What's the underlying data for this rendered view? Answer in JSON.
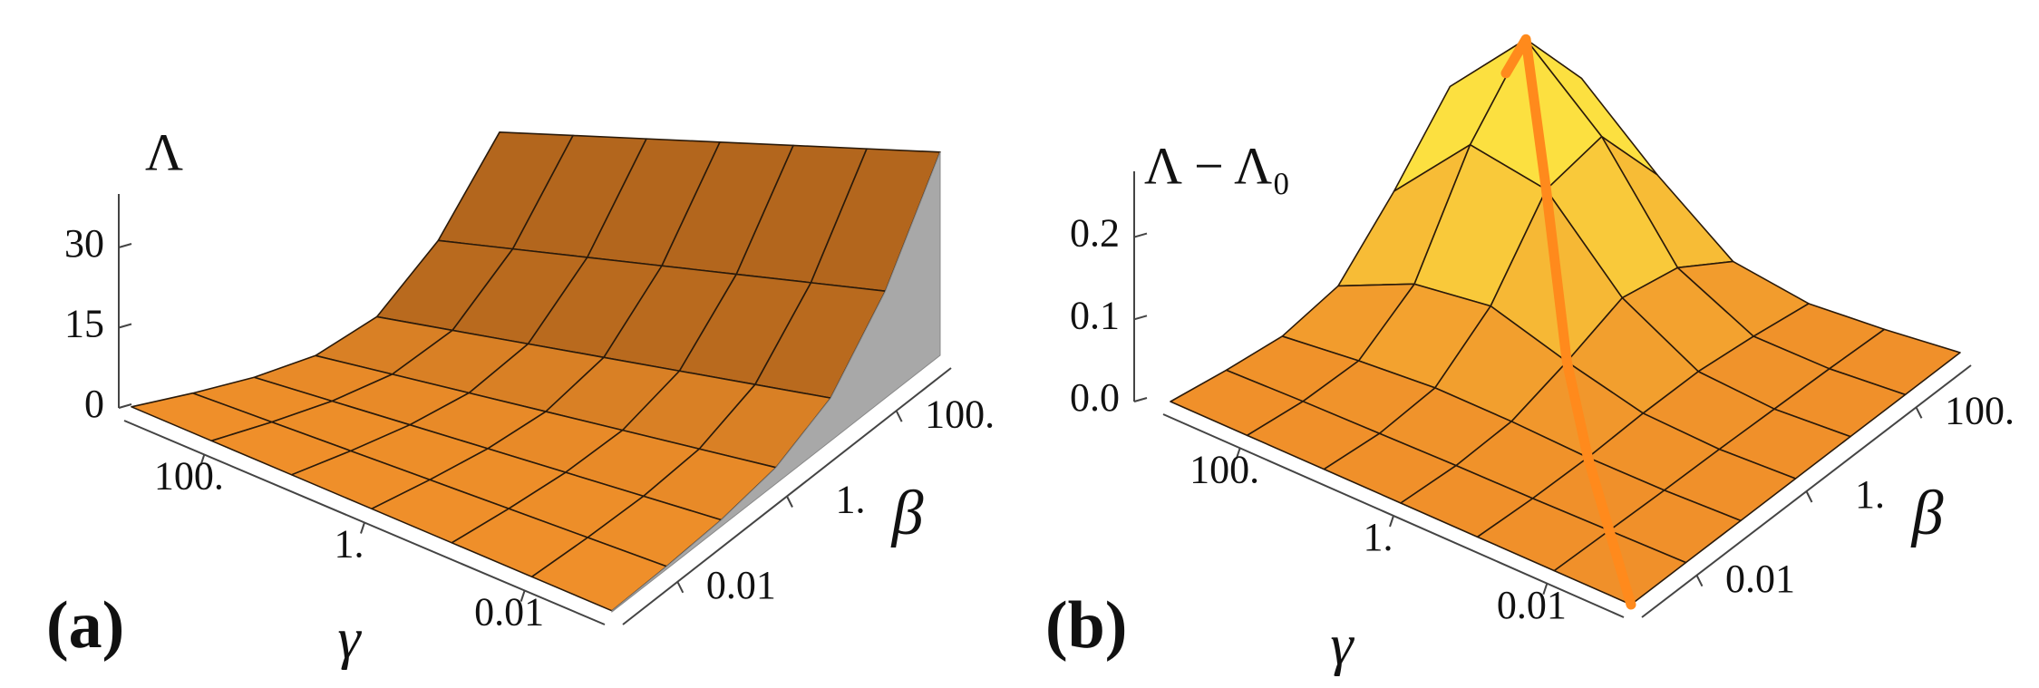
{
  "chart_data": [
    {
      "type": "surface",
      "panel_label": "(a)",
      "z_label": "Λ",
      "x_label": "γ",
      "y_label": "β",
      "x": [
        0.001,
        0.01,
        0.1,
        1,
        10,
        100,
        1000
      ],
      "y": [
        0.001,
        0.01,
        0.1,
        1,
        10,
        100,
        1000
      ],
      "z": [
        [
          0.2,
          0.5,
          1.2,
          3,
          8,
          20,
          38
        ],
        [
          0.2,
          0.5,
          1.2,
          3,
          8,
          20,
          38
        ],
        [
          0.2,
          0.5,
          1.2,
          3,
          8,
          20,
          38
        ],
        [
          0.2,
          0.5,
          1.2,
          3,
          8,
          20,
          38
        ],
        [
          0.2,
          0.5,
          1.2,
          3,
          8,
          20,
          38
        ],
        [
          0.2,
          0.5,
          1.2,
          3,
          8,
          20,
          38
        ],
        [
          0.2,
          0.5,
          1.2,
          3,
          8,
          20,
          38
        ]
      ],
      "xlim": [
        0.001,
        1000
      ],
      "ylim": [
        0.001,
        1000
      ],
      "zlim": [
        0,
        40
      ],
      "log_x": true,
      "log_y": true,
      "xticks": [
        {
          "value": 100,
          "label": "100."
        },
        {
          "value": 1,
          "label": "1."
        },
        0.01
      ],
      "yticks": [
        0.01,
        {
          "value": 1,
          "label": "1."
        },
        {
          "value": 100,
          "label": "100."
        }
      ],
      "zticks": [
        0,
        15,
        30
      ],
      "color": "#f0902a",
      "shadow_wall": true
    },
    {
      "type": "surface",
      "panel_label": "(b)",
      "z_label": "Λ − Λ₀",
      "x_label": "γ",
      "y_label": "β",
      "x": [
        0.001,
        0.01,
        0.1,
        1,
        10,
        100,
        1000
      ],
      "y": [
        0.001,
        0.01,
        0.1,
        1,
        10,
        100,
        1000
      ],
      "z": [
        [
          0,
          0,
          0,
          0,
          0,
          0,
          0
        ],
        [
          0,
          0,
          0,
          0.001,
          0.001,
          0.001,
          0
        ],
        [
          0,
          0,
          0.003,
          0.01,
          0.014,
          0.01,
          0.003
        ],
        [
          0,
          0.001,
          0.01,
          0.038,
          0.071,
          0.063,
          0.026
        ],
        [
          0,
          0.001,
          0.014,
          0.071,
          0.17,
          0.192,
          0.103
        ],
        [
          0,
          0.001,
          0.01,
          0.063,
          0.192,
          0.28,
          0.192
        ],
        [
          0,
          0,
          0.003,
          0.026,
          0.103,
          0.192,
          0.17
        ]
      ],
      "xlim": [
        0.001,
        1000
      ],
      "ylim": [
        0.001,
        1000
      ],
      "zlim": [
        0,
        0.28
      ],
      "log_x": true,
      "log_y": true,
      "xticks": [
        {
          "value": 100,
          "label": "100."
        },
        {
          "value": 1,
          "label": "1."
        },
        0.01
      ],
      "yticks": [
        0.01,
        {
          "value": 1,
          "label": "1."
        },
        {
          "value": 100,
          "label": "100."
        }
      ],
      "zticks": [
        {
          "value": 0,
          "label": "0.0"
        },
        0.1,
        0.2
      ],
      "color": "#f0902a",
      "highlight_color": "#fce040",
      "diagonal_line": true,
      "diagonal_color": "#ff8a1c"
    }
  ]
}
